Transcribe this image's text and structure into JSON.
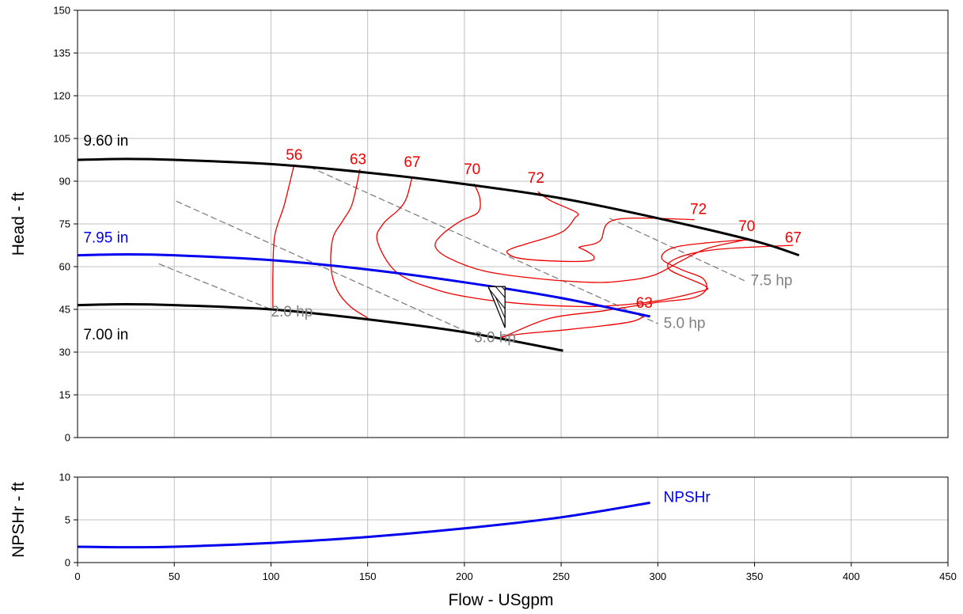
{
  "chart_data": [
    {
      "type": "line",
      "panel": "head",
      "xlabel": "Flow - USgpm",
      "ylabel": "Head - ft",
      "xlim": [
        0,
        450
      ],
      "ylim": [
        0,
        150
      ],
      "xticks": [
        0,
        50,
        100,
        150,
        200,
        250,
        300,
        350,
        400,
        450
      ],
      "yticks": [
        0,
        15,
        30,
        45,
        60,
        75,
        90,
        105,
        120,
        135,
        150
      ],
      "grid": true,
      "impeller_curves": [
        {
          "name": "9.60 in",
          "color": "#000000",
          "x": [
            0,
            25,
            50,
            100,
            150,
            200,
            250,
            300,
            350,
            373
          ],
          "y": [
            97.5,
            97.8,
            97.5,
            96,
            93,
            89,
            84,
            77,
            69,
            64
          ]
        },
        {
          "name": "7.95 in",
          "color": "#0000ee",
          "x": [
            0,
            25,
            50,
            100,
            150,
            200,
            250,
            296
          ],
          "y": [
            64,
            64.3,
            64,
            62.3,
            59,
            54.5,
            49,
            42.5
          ]
        },
        {
          "name": "7.00 in",
          "color": "#000000",
          "x": [
            0,
            25,
            50,
            100,
            150,
            200,
            251
          ],
          "y": [
            46.5,
            46.8,
            46.5,
            45,
            41.5,
            37,
            30.5
          ]
        }
      ],
      "efficiency_contours": [
        {
          "label": "56",
          "x": [
            112,
            107,
            102,
            101,
            101
          ],
          "y": [
            95.9,
            82,
            71,
            58,
            45
          ]
        },
        {
          "label": "63",
          "x": [
            146,
            142,
            137,
            132,
            131,
            134,
            141,
            150
          ],
          "y": [
            94.2,
            82,
            76,
            70,
            60,
            52,
            46,
            42
          ]
        },
        {
          "label": "63",
          "x": [
            294,
            285,
            255,
            231,
            220,
            221
          ],
          "y": [
            43.1,
            40.5,
            38,
            36.5,
            35.5,
            35.5
          ]
        },
        {
          "label": "67",
          "x": [
            173,
            170,
            166,
            158,
            155,
            165,
            185,
            205,
            230,
            260,
            280,
            300,
            320,
            325,
            306,
            310,
            330,
            370
          ],
          "y": [
            91.5,
            84,
            80,
            75,
            69,
            58,
            52,
            49,
            47,
            46,
            46.5,
            48,
            51,
            53,
            59,
            63,
            66,
            67.5
          ]
        },
        {
          "label": "67",
          "x": [
            218,
            224,
            245,
            272,
            300,
            318,
            325,
            323,
            312,
            302,
            310,
            340,
            349
          ],
          "y": [
            34.5,
            36.5,
            42,
            44.5,
            47.5,
            49,
            52,
            56,
            59,
            63,
            67,
            69.2,
            69.2
          ]
        },
        {
          "label": "70",
          "x": [
            205,
            208,
            207,
            198,
            188,
            185,
            192,
            210,
            235,
            265,
            282,
            298,
            312,
            326,
            346
          ],
          "y": [
            89.1,
            84,
            79,
            76,
            71,
            67,
            63,
            58.5,
            56,
            54.5,
            55,
            57,
            62,
            66.5,
            69.5
          ]
        },
        {
          "label": "72",
          "x": [
            238,
            245,
            258,
            257,
            250,
            232,
            225,
            222,
            228,
            245,
            264,
            267,
            263,
            260,
            260,
            270,
            278,
            319
          ],
          "y": [
            86.3,
            83,
            79,
            77,
            72,
            68,
            66.5,
            65,
            63,
            62,
            62,
            63.5,
            65.5,
            66.5,
            67,
            69,
            76.5,
            76.5
          ]
        }
      ],
      "efficiency_labels": [
        {
          "text": "56",
          "x": 112,
          "y": 97.5
        },
        {
          "text": "63",
          "x": 145,
          "y": 96
        },
        {
          "text": "67",
          "x": 173,
          "y": 95
        },
        {
          "text": "70",
          "x": 204,
          "y": 92.5
        },
        {
          "text": "72",
          "x": 237,
          "y": 89.5
        },
        {
          "text": "72",
          "x": 321,
          "y": 78.5
        },
        {
          "text": "70",
          "x": 346,
          "y": 72.5
        },
        {
          "text": "67",
          "x": 370,
          "y": 68.5
        },
        {
          "text": "63",
          "x": 293,
          "y": 45.5
        }
      ],
      "power_lines": [
        {
          "label": "2.0 hp",
          "x": [
            42,
            100
          ],
          "y": [
            61,
            45
          ],
          "label_x": 100,
          "label_y": 42.5
        },
        {
          "label": "3.0 hp",
          "x": [
            51,
            205
          ],
          "y": [
            83,
            36
          ],
          "label_x": 205,
          "label_y": 33.5
        },
        {
          "label": "5.0 hp",
          "x": [
            120,
            300
          ],
          "y": [
            95,
            40
          ],
          "label_x": 303,
          "label_y": 38.5
        },
        {
          "label": "7.5 hp",
          "x": [
            275,
            345
          ],
          "y": [
            77,
            55
          ],
          "label_x": 348,
          "label_y": 53.5
        }
      ],
      "curve_labels": [
        {
          "text": "9.60 in",
          "color": "#000000",
          "x": 3,
          "y": 102.5
        },
        {
          "text": "7.95 in",
          "color": "#0000ee",
          "x": 3,
          "y": 68.5
        },
        {
          "text": "7.00 in",
          "color": "#000000",
          "x": 3,
          "y": 34.5
        }
      ],
      "bep_marker": {
        "x": 221,
        "y": 53
      }
    },
    {
      "type": "line",
      "panel": "npsh",
      "ylabel": "NPSHr - ft",
      "xlim": [
        0,
        450
      ],
      "ylim": [
        0,
        10
      ],
      "yticks": [
        0,
        5,
        10
      ],
      "grid": true,
      "series": [
        {
          "name": "NPSHr",
          "color": "#0000ee",
          "x": [
            0,
            25,
            50,
            100,
            150,
            200,
            250,
            296
          ],
          "y": [
            1.85,
            1.8,
            1.85,
            2.3,
            3.0,
            4.0,
            5.3,
            7.0
          ]
        }
      ]
    }
  ],
  "colors": {
    "efficiency": "#ee0000",
    "power": "#808080",
    "grid": "#c0c0c0",
    "impeller_mid": "#0000ee"
  }
}
